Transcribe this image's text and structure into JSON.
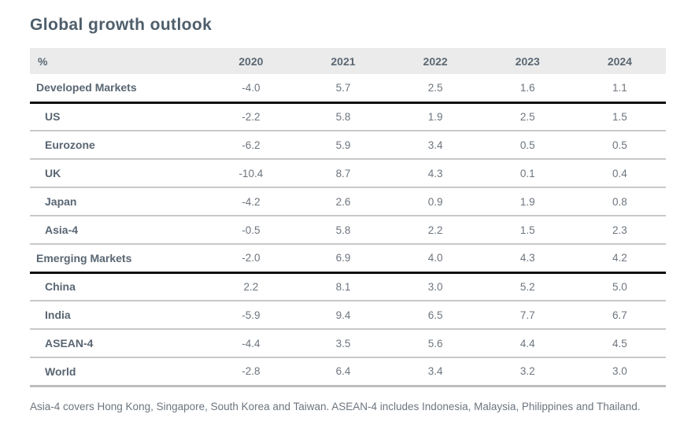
{
  "page": {
    "title": "Global growth outlook"
  },
  "table": {
    "header": {
      "label": "%",
      "years": [
        "2020",
        "2021",
        "2022",
        "2023",
        "2024"
      ]
    },
    "rows": [
      {
        "label": "Developed Markets",
        "group": true,
        "divider_below": "black",
        "values": [
          "-4.0",
          "5.7",
          "2.5",
          "1.6",
          "1.1"
        ]
      },
      {
        "label": "US",
        "group": false,
        "divider_below": "gray",
        "values": [
          "-2.2",
          "5.8",
          "1.9",
          "2.5",
          "1.5"
        ]
      },
      {
        "label": "Eurozone",
        "group": false,
        "divider_below": "gray",
        "values": [
          "-6.2",
          "5.9",
          "3.4",
          "0.5",
          "0.5"
        ]
      },
      {
        "label": "UK",
        "group": false,
        "divider_below": "gray",
        "values": [
          "-10.4",
          "8.7",
          "4.3",
          "0.1",
          "0.4"
        ]
      },
      {
        "label": "Japan",
        "group": false,
        "divider_below": "gray",
        "values": [
          "-4.2",
          "2.6",
          "0.9",
          "1.9",
          "0.8"
        ]
      },
      {
        "label": "Asia-4",
        "group": false,
        "divider_below": "gray",
        "values": [
          "-0.5",
          "5.8",
          "2.2",
          "1.5",
          "2.3"
        ]
      },
      {
        "label": "Emerging Markets",
        "group": true,
        "divider_below": "black",
        "values": [
          "-2.0",
          "6.9",
          "4.0",
          "4.3",
          "4.2"
        ]
      },
      {
        "label": "China",
        "group": false,
        "divider_below": "gray",
        "values": [
          "2.2",
          "8.1",
          "3.0",
          "5.2",
          "5.0"
        ]
      },
      {
        "label": "India",
        "group": false,
        "divider_below": "gray",
        "values": [
          "-5.9",
          "9.4",
          "6.5",
          "7.7",
          "6.7"
        ]
      },
      {
        "label": "ASEAN-4",
        "group": false,
        "divider_below": "gray",
        "values": [
          "-4.4",
          "3.5",
          "5.6",
          "4.4",
          "4.5"
        ]
      },
      {
        "label": "World",
        "group": false,
        "divider_below": "gray",
        "values": [
          "-2.8",
          "6.4",
          "3.4",
          "3.2",
          "3.0"
        ]
      }
    ]
  },
  "footnote": "Asia-4 covers Hong Kong, Singapore, South Korea and Taiwan. ASEAN-4 includes Indonesia, Malaysia, Philippines and Thailand.",
  "colors": {
    "title": "#4e5e6b",
    "header_background": "#ebebeb",
    "header_text": "#5a6772",
    "row_label_text": "#596672",
    "value_text": "#6d757e",
    "separator_gray": "#c9c9c9",
    "divider_black": "#101010",
    "table_bottom_border": "#bdbdbd"
  },
  "chart_data": {
    "type": "table",
    "title": "Global growth outlook",
    "unit": "%",
    "columns": [
      "%",
      "2020",
      "2021",
      "2022",
      "2023",
      "2024"
    ],
    "rows": [
      {
        "label": "Developed Markets",
        "values": [
          -4.0,
          5.7,
          2.5,
          1.6,
          1.1
        ]
      },
      {
        "label": "US",
        "values": [
          -2.2,
          5.8,
          1.9,
          2.5,
          1.5
        ]
      },
      {
        "label": "Eurozone",
        "values": [
          -6.2,
          5.9,
          3.4,
          0.5,
          0.5
        ]
      },
      {
        "label": "UK",
        "values": [
          -10.4,
          8.7,
          4.3,
          0.1,
          0.4
        ]
      },
      {
        "label": "Japan",
        "values": [
          -4.2,
          2.6,
          0.9,
          1.9,
          0.8
        ]
      },
      {
        "label": "Asia-4",
        "values": [
          -0.5,
          5.8,
          2.2,
          1.5,
          2.3
        ]
      },
      {
        "label": "Emerging Markets",
        "values": [
          -2.0,
          6.9,
          4.0,
          4.3,
          4.2
        ]
      },
      {
        "label": "China",
        "values": [
          2.2,
          8.1,
          3.0,
          5.2,
          5.0
        ]
      },
      {
        "label": "India",
        "values": [
          -5.9,
          9.4,
          6.5,
          7.7,
          6.7
        ]
      },
      {
        "label": "ASEAN-4",
        "values": [
          -4.4,
          3.5,
          5.6,
          4.4,
          4.5
        ]
      },
      {
        "label": "World",
        "values": [
          -2.8,
          6.4,
          3.4,
          3.2,
          3.0
        ]
      }
    ],
    "footnote": "Asia-4 covers Hong Kong, Singapore, South Korea and Taiwan. ASEAN-4 includes Indonesia, Malaysia, Philippines and Thailand."
  }
}
